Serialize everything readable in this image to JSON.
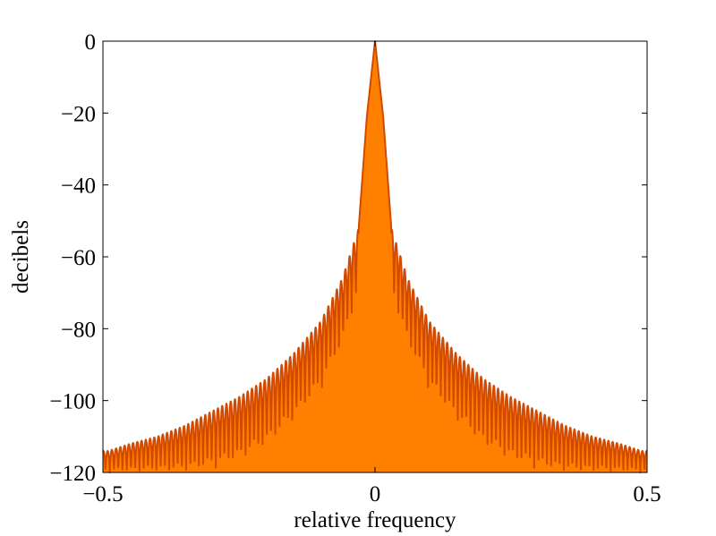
{
  "chart_data": {
    "type": "area",
    "title": "",
    "xlabel": "relative frequency",
    "ylabel": "decibels",
    "xlim": [
      -0.5,
      0.5
    ],
    "ylim": [
      -120,
      0
    ],
    "x_ticks": [
      {
        "value": -0.5,
        "label": "−0.5"
      },
      {
        "value": 0,
        "label": "0"
      },
      {
        "value": 0.5,
        "label": "0.5"
      }
    ],
    "y_ticks": [
      {
        "value": 0,
        "label": "0"
      },
      {
        "value": -20,
        "label": "−20"
      },
      {
        "value": -40,
        "label": "−40"
      },
      {
        "value": -60,
        "label": "−60"
      },
      {
        "value": -80,
        "label": "−80"
      },
      {
        "value": -100,
        "label": "−100"
      },
      {
        "value": -120,
        "label": "−120"
      }
    ],
    "grid": false,
    "legend": "none",
    "colors": {
      "fill": "#ff8000",
      "line": "#d24a00",
      "axes": "#000000"
    },
    "series": [
      {
        "envelope_peaks": {
          "x": [
            -0.49,
            -0.45,
            -0.4,
            -0.35,
            -0.3,
            -0.25,
            -0.2,
            -0.15,
            -0.1,
            -0.06,
            -0.03,
            -0.015,
            0,
            0.015,
            0.03,
            0.06,
            0.1,
            0.15,
            0.2,
            0.25,
            0.3,
            0.35,
            0.4,
            0.45,
            0.49
          ],
          "y": [
            -114,
            -112,
            -110,
            -107,
            -103,
            -99,
            -94,
            -87,
            -78,
            -66,
            -52,
            -21,
            0,
            -21,
            -52,
            -66,
            -78,
            -87,
            -94,
            -99,
            -103,
            -107,
            -110,
            -112,
            -114
          ]
        },
        "envelope_troughs": {
          "x": [
            -0.5,
            -0.45,
            -0.4,
            -0.35,
            -0.3,
            -0.25,
            -0.2,
            -0.15,
            -0.1,
            -0.06,
            -0.03,
            0.03,
            0.06,
            0.1,
            0.15,
            0.2,
            0.25,
            0.3,
            0.35,
            0.4,
            0.45,
            0.5
          ],
          "y": [
            -120,
            -120,
            -120,
            -120,
            -119,
            -117,
            -113,
            -106,
            -97,
            -85,
            -70,
            -70,
            -85,
            -97,
            -106,
            -113,
            -117,
            -119,
            -120,
            -120,
            -120,
            -120
          ]
        },
        "sidelobe_period": 0.0078
      }
    ]
  }
}
